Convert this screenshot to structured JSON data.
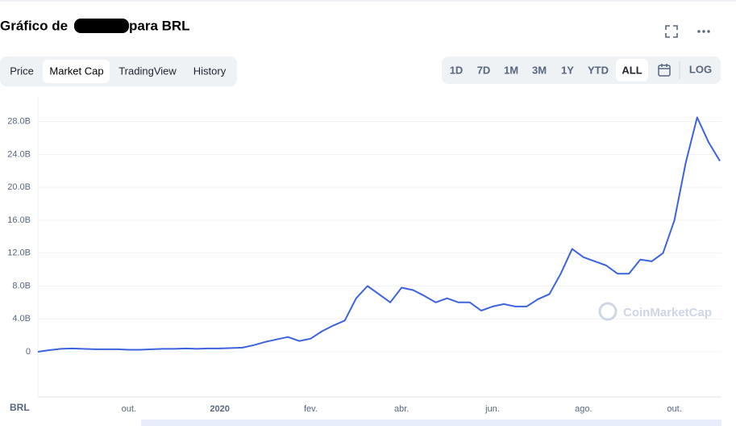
{
  "header": {
    "title_start": "Gráfico de",
    "title_end": "para BRL"
  },
  "tabs": [
    "Price",
    "Market Cap",
    "TradingView",
    "History"
  ],
  "ranges": [
    "1D",
    "7D",
    "1M",
    "3M",
    "1Y",
    "YTD",
    "ALL"
  ],
  "log_button": "LOG",
  "watermark": "CoinMarketCap",
  "chart_data": {
    "type": "line",
    "x_axis_label": "BRL",
    "categories": [
      null,
      null,
      null,
      null,
      null,
      null,
      null,
      null,
      "out.",
      null,
      null,
      null,
      null,
      null,
      null,
      null,
      "2020",
      null,
      null,
      null,
      null,
      null,
      null,
      null,
      "fev.",
      null,
      null,
      null,
      null,
      null,
      null,
      null,
      "abr.",
      null,
      null,
      null,
      null,
      null,
      null,
      null,
      "jun.",
      null,
      null,
      null,
      null,
      null,
      null,
      null,
      "ago.",
      null,
      null,
      null,
      null,
      null,
      null,
      null,
      "out.",
      null,
      null,
      null,
      null
    ],
    "series": [
      {
        "name": "Market Cap",
        "color": "#3d63dd",
        "values": [
          0,
          0.2,
          0.35,
          0.4,
          0.35,
          0.3,
          0.3,
          0.3,
          0.25,
          0.25,
          0.3,
          0.35,
          0.35,
          0.4,
          0.35,
          0.4,
          0.4,
          0.45,
          0.5,
          0.8,
          1.2,
          1.5,
          1.8,
          1.3,
          1.6,
          2.5,
          3.2,
          3.8,
          6.5,
          8,
          7,
          6,
          7.8,
          7.5,
          6.8,
          6,
          6.5,
          6,
          6,
          5,
          5.5,
          5.8,
          5.5,
          5.5,
          6.4,
          7,
          9.5,
          12.5,
          11.5,
          11,
          10.5,
          9.5,
          9.5,
          11.2,
          11,
          12,
          16,
          23,
          28.5,
          25.5,
          23.2
        ]
      }
    ],
    "ylim": [
      0,
      31
    ],
    "yticks": [
      0,
      {
        "value": 4,
        "label": "4.0B"
      },
      {
        "value": 8,
        "label": "8.0B"
      },
      {
        "value": 12,
        "label": "12.0B"
      },
      {
        "value": 16,
        "label": "16.0B"
      },
      {
        "value": 20,
        "label": "20.0B"
      },
      {
        "value": 24,
        "label": "24.0B"
      },
      {
        "value": 28,
        "label": "28.0B"
      }
    ],
    "grid": true
  }
}
